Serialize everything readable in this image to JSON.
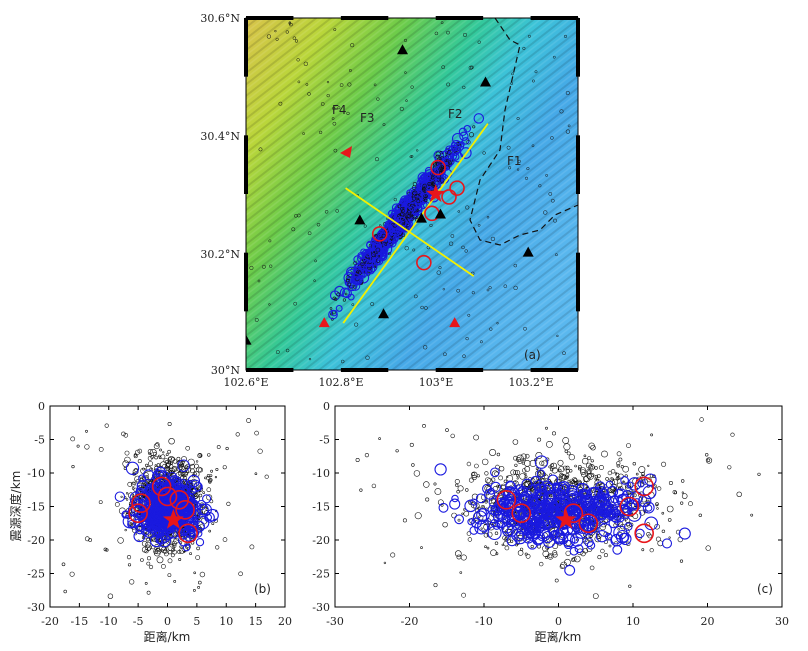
{
  "colors": {
    "fault": "#e8161b",
    "profile": "#f4f000",
    "small_event": "#111111",
    "medium_event": "#1a1adf",
    "large_event": "#e8161b",
    "mainshock": "#e8161b",
    "station": "#000000",
    "station_red": "#e8161b"
  },
  "map_panel": {
    "panel_label": "(a)",
    "lat_ticks": [
      "30.6°N",
      "30.4°N",
      "30.2°N",
      "30°N"
    ],
    "lon_ticks": [
      "102.6°E",
      "102.8°E",
      "103°E",
      "103.2°E"
    ],
    "fault_labels": [
      "F4",
      "F3",
      "F2",
      "F1"
    ],
    "extent": {
      "lon": [
        102.6,
        103.3
      ],
      "lat": [
        30.0,
        30.6
      ]
    }
  },
  "panel_b": {
    "panel_label": "(b)",
    "ylabel": "震源深度/km",
    "xlabel": "距离/km",
    "x_ticks": [
      "-20",
      "-15",
      "-10",
      "-5",
      "0",
      "5",
      "10",
      "15",
      "20"
    ],
    "y_ticks": [
      "0",
      "-5",
      "-10",
      "-15",
      "-20",
      "-25",
      "-30"
    ],
    "xlim": [
      -20,
      20
    ],
    "ylim": [
      -30,
      0
    ]
  },
  "panel_c": {
    "panel_label": "(c)",
    "xlabel": "距离/km",
    "x_ticks": [
      "-30",
      "-20",
      "-10",
      "0",
      "10",
      "20",
      "30"
    ],
    "y_ticks": [
      "0",
      "-5",
      "-10",
      "-15",
      "-20",
      "-25",
      "-30"
    ],
    "xlim": [
      -30,
      30
    ],
    "ylim": [
      -30,
      0
    ]
  },
  "mainshock": {
    "lon": 103.0,
    "lat": 30.3,
    "distance_b": 1.0,
    "distance_c": 1.0,
    "depth": -17.0
  },
  "large_events_b": [
    [
      -4.5,
      -14.5
    ],
    [
      -5,
      -16
    ],
    [
      0,
      -13.5
    ],
    [
      2,
      -14
    ],
    [
      3,
      -15.5
    ],
    [
      3.5,
      -19
    ],
    [
      -1,
      -12
    ]
  ],
  "large_events_c": [
    [
      -7,
      -14
    ],
    [
      -5,
      -16
    ],
    [
      2,
      -16
    ],
    [
      9.5,
      -15
    ],
    [
      11.5,
      -12
    ],
    [
      11.5,
      -19
    ],
    [
      4,
      -17.5
    ]
  ],
  "large_events_map": [
    [
      102.992,
      30.267
    ],
    [
      102.975,
      30.183
    ],
    [
      102.882,
      30.232
    ],
    [
      103.005,
      30.345
    ],
    [
      103.045,
      30.31
    ],
    [
      103.028,
      30.295
    ]
  ],
  "stations_black": [
    [
      102.93,
      30.545
    ],
    [
      103.105,
      30.49
    ],
    [
      102.84,
      30.255
    ],
    [
      102.97,
      30.258
    ],
    [
      103.01,
      30.265
    ],
    [
      102.89,
      30.095
    ],
    [
      103.195,
      30.2
    ],
    [
      102.6,
      30.05
    ]
  ],
  "stations_red": [
    [
      102.765,
      30.08
    ],
    [
      103.04,
      30.08
    ]
  ],
  "profiles_map": [
    {
      "from": [
        102.805,
        30.08
      ],
      "to": [
        103.11,
        30.42
      ]
    },
    {
      "from": [
        102.81,
        30.31
      ],
      "to": [
        103.08,
        30.16
      ]
    }
  ]
}
